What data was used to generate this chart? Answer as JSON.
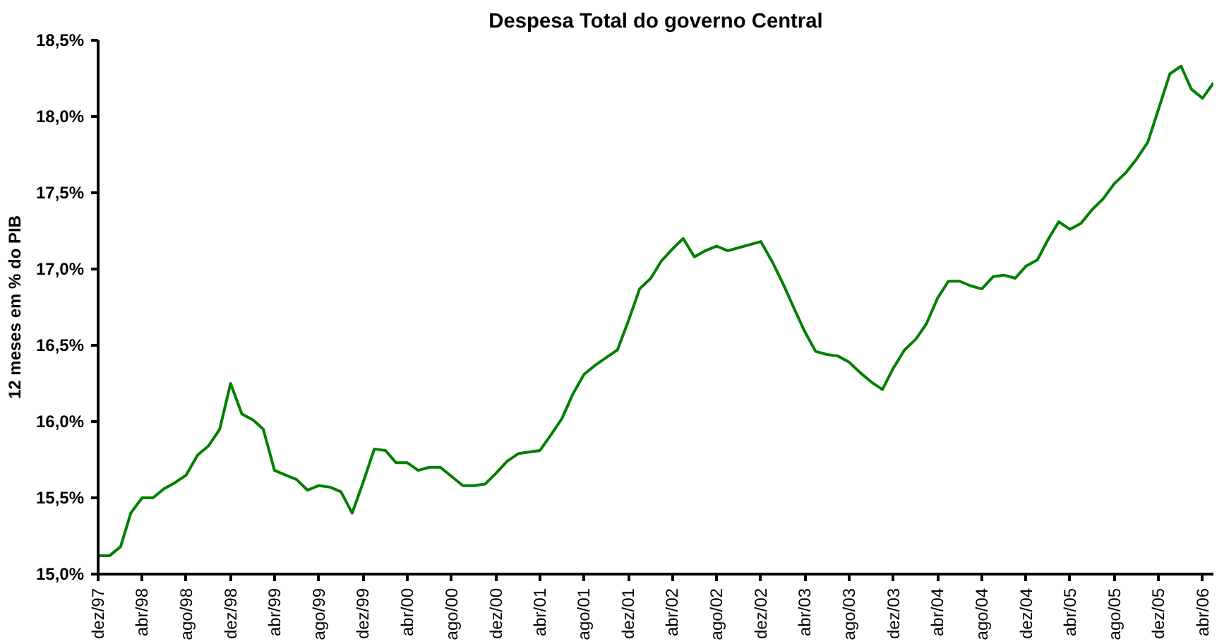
{
  "chart_data": {
    "type": "line",
    "title": "Despesa Total do governo Central",
    "ylabel": "12 meses em % do PIB",
    "x": [
      "1997-12",
      "1998-01",
      "1998-02",
      "1998-03",
      "1998-04",
      "1998-05",
      "1998-06",
      "1998-07",
      "1998-08",
      "1998-09",
      "1998-10",
      "1998-11",
      "1998-12",
      "1999-01",
      "1999-02",
      "1999-03",
      "1999-04",
      "1999-05",
      "1999-06",
      "1999-07",
      "1999-08",
      "1999-09",
      "1999-10",
      "1999-11",
      "1999-12",
      "2000-01",
      "2000-02",
      "2000-03",
      "2000-04",
      "2000-05",
      "2000-06",
      "2000-07",
      "2000-08",
      "2000-09",
      "2000-10",
      "2000-11",
      "2000-12",
      "2001-01",
      "2001-02",
      "2001-03",
      "2001-04",
      "2001-05",
      "2001-06",
      "2001-07",
      "2001-08",
      "2001-09",
      "2001-10",
      "2001-11",
      "2001-12",
      "2002-01",
      "2002-02",
      "2002-03",
      "2002-04",
      "2002-05",
      "2002-06",
      "2002-07",
      "2002-08",
      "2002-09",
      "2002-10",
      "2002-11",
      "2002-12",
      "2003-01",
      "2003-02",
      "2003-03",
      "2003-04",
      "2003-05",
      "2003-06",
      "2003-07",
      "2003-08",
      "2003-09",
      "2003-10",
      "2003-11",
      "2003-12",
      "2004-01",
      "2004-02",
      "2004-03",
      "2004-04",
      "2004-05",
      "2004-06",
      "2004-07",
      "2004-08",
      "2004-09",
      "2004-10",
      "2004-11",
      "2004-12",
      "2005-01",
      "2005-02",
      "2005-03",
      "2005-04",
      "2005-05",
      "2005-06",
      "2005-07",
      "2005-08",
      "2005-09",
      "2005-10",
      "2005-11",
      "2005-12",
      "2006-01",
      "2006-02",
      "2006-03",
      "2006-04",
      "2006-05"
    ],
    "series": [
      {
        "color": "#008000",
        "values": [
          15.12,
          15.12,
          15.18,
          15.4,
          15.5,
          15.5,
          15.56,
          15.6,
          15.65,
          15.78,
          15.84,
          15.95,
          16.25,
          16.05,
          16.01,
          15.95,
          15.68,
          15.65,
          15.62,
          15.55,
          15.58,
          15.57,
          15.54,
          15.4,
          15.6,
          15.82,
          15.81,
          15.73,
          15.73,
          15.68,
          15.7,
          15.7,
          15.64,
          15.58,
          15.58,
          15.59,
          15.66,
          15.74,
          15.79,
          15.8,
          15.81,
          15.91,
          16.02,
          16.18,
          16.31,
          16.37,
          16.42,
          16.47,
          16.66,
          16.87,
          16.94,
          17.05,
          17.13,
          17.2,
          17.08,
          17.12,
          17.15,
          17.12,
          17.14,
          17.16,
          17.18,
          17.05,
          16.9,
          16.75,
          16.59,
          16.46,
          16.44,
          16.43,
          16.39,
          16.32,
          16.26,
          16.21,
          16.35,
          16.47,
          16.54,
          16.64,
          16.81,
          16.92,
          16.92,
          16.89,
          16.87,
          16.95,
          16.96,
          16.94,
          17.02,
          17.06,
          17.2,
          17.31,
          17.26,
          17.3,
          17.39,
          17.46,
          17.56,
          17.63,
          17.72,
          17.83,
          18.05,
          18.28,
          18.33,
          18.18,
          18.12,
          18.22
        ]
      }
    ],
    "xlim": [
      "1997-12",
      "2006-05"
    ],
    "xticks": [
      {
        "value": "1997-12",
        "label": "dez/97"
      },
      {
        "value": "1998-04",
        "label": "abr/98"
      },
      {
        "value": "1998-08",
        "label": "ago/98"
      },
      {
        "value": "1998-12",
        "label": "dez/98"
      },
      {
        "value": "1999-04",
        "label": "abr/99"
      },
      {
        "value": "1999-08",
        "label": "ago/99"
      },
      {
        "value": "1999-12",
        "label": "dez/99"
      },
      {
        "value": "2000-04",
        "label": "abr/00"
      },
      {
        "value": "2000-08",
        "label": "ago/00"
      },
      {
        "value": "2000-12",
        "label": "dez/00"
      },
      {
        "value": "2001-04",
        "label": "abr/01"
      },
      {
        "value": "2001-08",
        "label": "ago/01"
      },
      {
        "value": "2001-12",
        "label": "dez/01"
      },
      {
        "value": "2002-04",
        "label": "abr/02"
      },
      {
        "value": "2002-08",
        "label": "ago/02"
      },
      {
        "value": "2002-12",
        "label": "dez/02"
      },
      {
        "value": "2003-04",
        "label": "abr/03"
      },
      {
        "value": "2003-08",
        "label": "ago/03"
      },
      {
        "value": "2003-12",
        "label": "dez/03"
      },
      {
        "value": "2004-04",
        "label": "abr/04"
      },
      {
        "value": "2004-08",
        "label": "ago/04"
      },
      {
        "value": "2004-12",
        "label": "dez/04"
      },
      {
        "value": "2005-04",
        "label": "abr/05"
      },
      {
        "value": "2005-08",
        "label": "ago/05"
      },
      {
        "value": "2005-12",
        "label": "dez/05"
      },
      {
        "value": "2006-04",
        "label": "abr/06"
      }
    ],
    "ylim": [
      15.0,
      18.5
    ],
    "yticks": [
      {
        "value": 15.0,
        "label": "15,0%"
      },
      {
        "value": 15.5,
        "label": "15,5%"
      },
      {
        "value": 16.0,
        "label": "16,0%"
      },
      {
        "value": 16.5,
        "label": "16,5%"
      },
      {
        "value": 17.0,
        "label": "17,0%"
      },
      {
        "value": 17.5,
        "label": "17,5%"
      },
      {
        "value": 18.0,
        "label": "18,0%"
      },
      {
        "value": 18.5,
        "label": "18,5%"
      }
    ],
    "grid": false,
    "marker": "none",
    "line_style": "solid"
  }
}
